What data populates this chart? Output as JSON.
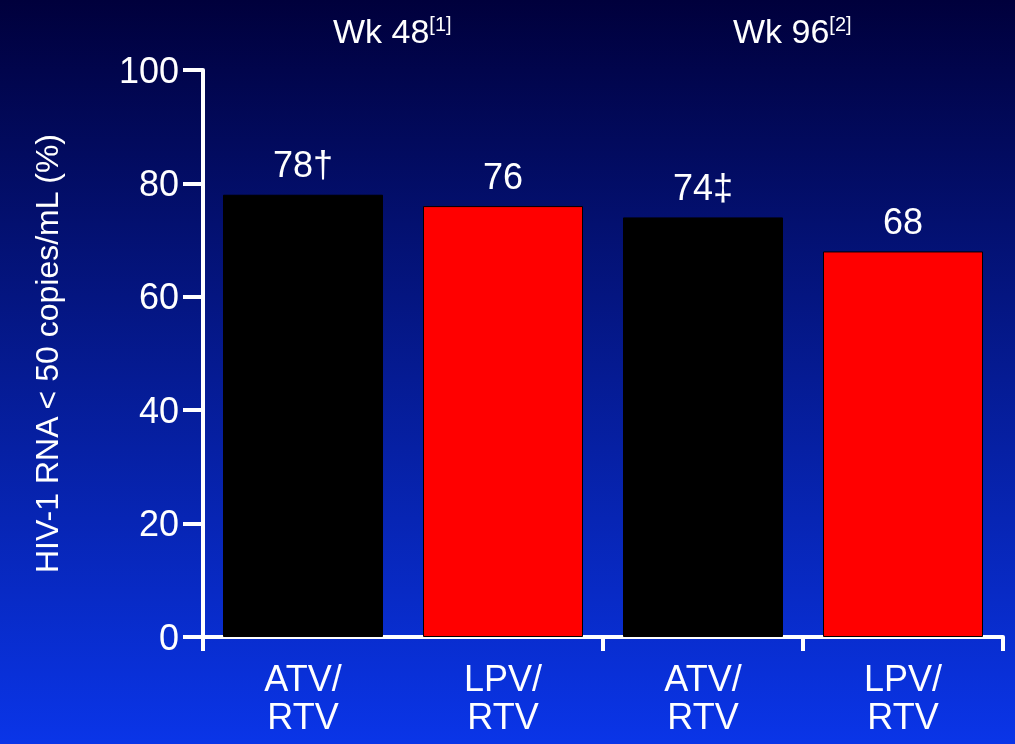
{
  "chart_data": {
    "type": "bar",
    "ylabel": "HIV-1 RNA < 50 copies/mL (%)",
    "categories": [
      "ATV/\nRTV",
      "LPV/\nRTV",
      "ATV/\nRTV",
      "LPV/\nRTV"
    ],
    "values": [
      78,
      76,
      74,
      68
    ],
    "colors": [
      "#000000",
      "#ff0000",
      "#000000",
      "#ff0000"
    ],
    "value_labels": [
      "78†",
      "76",
      "74‡",
      "68"
    ],
    "annotations": [
      "Wk 48$^{[1]}$",
      "Wk 96$^{[2]}$"
    ],
    "ylim": [
      0,
      100
    ],
    "yticks": [
      0,
      20,
      40,
      60,
      80,
      100
    ],
    "grid": false
  }
}
